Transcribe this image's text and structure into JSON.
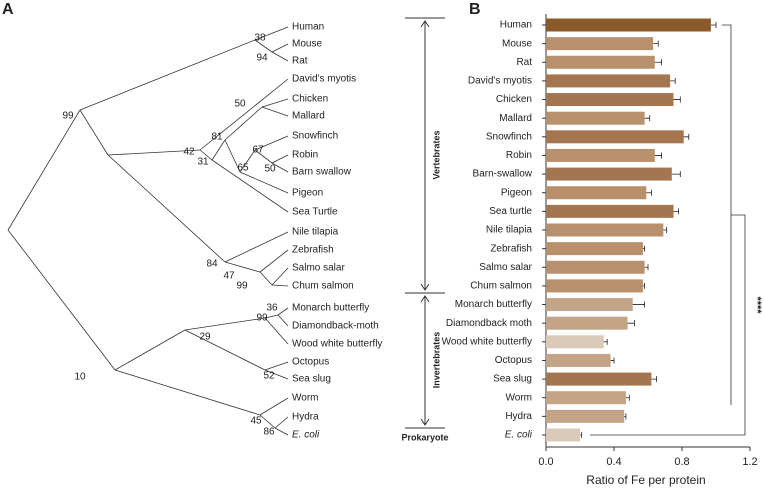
{
  "panels": [
    "A",
    "B"
  ],
  "tree": {
    "leaves": [
      "Human",
      "Mouse",
      "Rat",
      "David's myotis",
      "Chicken",
      "Mallard",
      "Snowfinch",
      "Robin",
      "Barn swallow",
      "Pigeon",
      "Sea Turtle",
      "Nile tilapia",
      "Zebrafish",
      "Salmo salar",
      "Chum salmon",
      "Monarch butterfly",
      "Diamondback-moth",
      "Wood white butterfly",
      "Octopus",
      "Sea slug",
      "Worm",
      "Hydra",
      "E. coli"
    ],
    "support": [
      38,
      94,
      99,
      50,
      81,
      42,
      31,
      67,
      50,
      65,
      84,
      47,
      99,
      36,
      99,
      29,
      52,
      10,
      45,
      86
    ],
    "groups": [
      "Vertebrates",
      "Invertebrates",
      "Prokaryote"
    ]
  },
  "chart_data": {
    "type": "bar",
    "orientation": "horizontal",
    "categories": [
      "Human",
      "Mouse",
      "Rat",
      "David's myotis",
      "Chicken",
      "Mallard",
      "Snowfinch",
      "Robin",
      "Barn-swallow",
      "Pigeon",
      "Sea turtle",
      "Nile tilapia",
      "Zebrafish",
      "Salmo salar",
      "Chum salmon",
      "Monarch butterfly",
      "Diamondback moth",
      "Wood white butterfly",
      "Octopus",
      "Sea slug",
      "Worm",
      "Hydra",
      "E. coli"
    ],
    "values": [
      0.97,
      0.63,
      0.64,
      0.73,
      0.75,
      0.58,
      0.81,
      0.64,
      0.74,
      0.59,
      0.75,
      0.69,
      0.57,
      0.58,
      0.57,
      0.51,
      0.48,
      0.34,
      0.38,
      0.62,
      0.47,
      0.46,
      0.2
    ],
    "errors": [
      0.03,
      0.03,
      0.04,
      0.03,
      0.04,
      0.03,
      0.03,
      0.04,
      0.05,
      0.03,
      0.03,
      0.02,
      0.01,
      0.02,
      0.01,
      0.07,
      0.04,
      0.02,
      0.02,
      0.03,
      0.02,
      0.01,
      0.01
    ],
    "colors": [
      "#8b5a2b",
      "#b8916c",
      "#b8916c",
      "#a37650",
      "#a37650",
      "#b8916c",
      "#a37650",
      "#b8916c",
      "#a37650",
      "#b8916c",
      "#a37650",
      "#b8916c",
      "#b8916c",
      "#b8916c",
      "#b8916c",
      "#c4a486",
      "#c4a486",
      "#dccab8",
      "#c4a486",
      "#a37650",
      "#c4a486",
      "#c4a486",
      "#dccab8"
    ],
    "xlabel": "Ratio of Fe per  protein",
    "xlim": [
      0,
      1.2
    ],
    "xticks": [
      {
        "value": 0,
        "label": "0.0"
      },
      0.4,
      0.8,
      1.2
    ],
    "annotation": "****"
  }
}
